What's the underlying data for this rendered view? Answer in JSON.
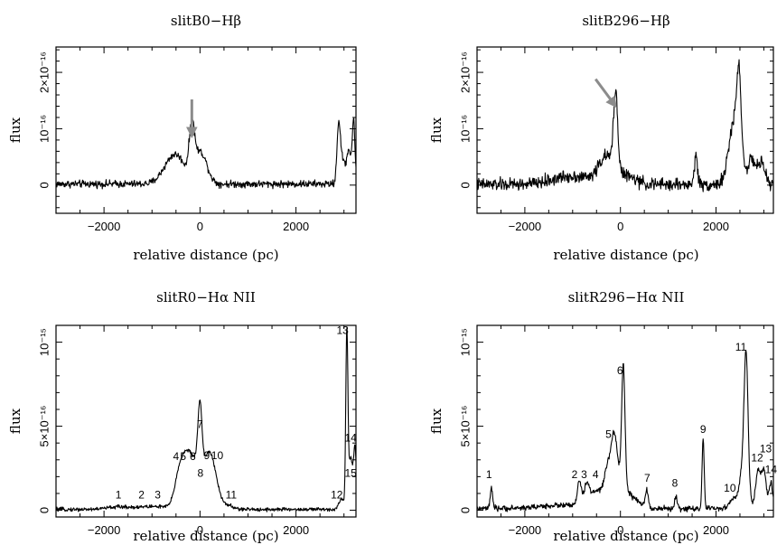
{
  "colors": {
    "trace": "#000000",
    "arrow": "#8c8c8c",
    "background": "#ffffff"
  },
  "chart_data": [
    {
      "type": "line",
      "title": "slitB0−Hβ",
      "xlabel": "relative distance (pc)",
      "ylabel": "flux",
      "xlim": [
        -3000,
        3250
      ],
      "ylim": [
        -5e-17,
        2.45e-16
      ],
      "xticks": [
        -2000,
        0,
        2000
      ],
      "xtick_labels": [
        "−2000",
        "0",
        "2000"
      ],
      "yticks": [
        0,
        1e-16,
        2e-16
      ],
      "ytick_labels": [
        "0",
        "10⁻¹⁶",
        "2×10⁻¹⁶"
      ],
      "grid": false,
      "noise_amplitude": 4e-18,
      "baseline": 2e-18,
      "peaks": [
        {
          "x": -620,
          "height": 3.5e-17,
          "width": 180
        },
        {
          "x": -420,
          "height": 2.8e-17,
          "width": 150
        },
        {
          "x": -170,
          "height": 8.2e-17,
          "width": 55
        },
        {
          "x": -40,
          "height": 3.8e-17,
          "width": 120
        },
        {
          "x": 80,
          "height": 2.6e-17,
          "width": 120
        },
        {
          "x": 2890,
          "height": 1.05e-16,
          "width": 35
        },
        {
          "x": 2980,
          "height": 4e-17,
          "width": 50
        },
        {
          "x": 3100,
          "height": 6e-17,
          "width": 40
        },
        {
          "x": 3200,
          "height": 1.1e-16,
          "width": 30
        }
      ],
      "arrows": [
        {
          "x": -170,
          "y": 8.7e-17,
          "dx": 0,
          "dy": 6.5e-17
        }
      ],
      "peak_labels": []
    },
    {
      "type": "line",
      "title": "slitB296−Hβ",
      "xlabel": "relative distance (pc)",
      "ylabel": "flux",
      "xlim": [
        -3000,
        3200
      ],
      "ylim": [
        -5e-17,
        2.45e-16
      ],
      "xticks": [
        -2000,
        0,
        2000
      ],
      "xtick_labels": [
        "−2000",
        "0",
        "2000"
      ],
      "yticks": [
        0,
        1e-16,
        2e-16
      ],
      "ytick_labels": [
        "0",
        "10⁻¹⁶",
        "2×10⁻¹⁶"
      ],
      "grid": false,
      "noise_amplitude": 7e-18,
      "baseline": 1e-18,
      "peaks": [
        {
          "x": -1000,
          "height": 1.5e-17,
          "width": 400
        },
        {
          "x": -300,
          "height": 4.5e-17,
          "width": 160
        },
        {
          "x": -100,
          "height": 1.35e-16,
          "width": 45
        },
        {
          "x": 100,
          "height": 1.5e-17,
          "width": 200
        },
        {
          "x": 1580,
          "height": 5.5e-17,
          "width": 30
        },
        {
          "x": 2400,
          "height": 1.2e-16,
          "width": 120
        },
        {
          "x": 2480,
          "height": 1.2e-16,
          "width": 40
        },
        {
          "x": 2750,
          "height": 4e-17,
          "width": 80
        },
        {
          "x": 2950,
          "height": 3.5e-17,
          "width": 80
        }
      ],
      "arrows": [
        {
          "x": -100,
          "y": 1.4e-16,
          "dx": -420,
          "dy": 4.8e-17
        }
      ],
      "peak_labels": []
    },
    {
      "type": "line",
      "title": "slitR0−Hα NII",
      "xlabel": "relative distance (pc)",
      "ylabel": "flux",
      "xlim": [
        -3000,
        3250
      ],
      "ylim": [
        -4e-17,
        1.1e-15
      ],
      "xticks": [
        -2000,
        0,
        2000
      ],
      "xtick_labels": [
        "−2000",
        "0",
        "2000"
      ],
      "yticks": [
        0,
        5e-16,
        1e-15
      ],
      "ytick_labels": [
        "0",
        "5×10⁻¹⁶",
        "10⁻¹⁵"
      ],
      "grid": false,
      "noise_amplitude": 7e-18,
      "baseline": 5e-18,
      "peaks": [
        {
          "x": -1700,
          "height": 1.5e-17,
          "width": 250
        },
        {
          "x": -1200,
          "height": 1e-17,
          "width": 200
        },
        {
          "x": -850,
          "height": 1.5e-17,
          "width": 200
        },
        {
          "x": -400,
          "height": 2.6e-16,
          "width": 110
        },
        {
          "x": -230,
          "height": 2.3e-16,
          "width": 90
        },
        {
          "x": -60,
          "height": 2.3e-16,
          "width": 90
        },
        {
          "x": 0,
          "height": 3.6e-16,
          "width": 40
        },
        {
          "x": 150,
          "height": 2.4e-16,
          "width": 110
        },
        {
          "x": 280,
          "height": 1.6e-16,
          "width": 110
        },
        {
          "x": 550,
          "height": 2.5e-17,
          "width": 120
        },
        {
          "x": 2950,
          "height": 6e-17,
          "width": 60
        },
        {
          "x": 3060,
          "height": 1.05e-15,
          "width": 22
        },
        {
          "x": 3140,
          "height": 3e-16,
          "width": 40
        },
        {
          "x": 3230,
          "height": 3.5e-16,
          "width": 30
        }
      ],
      "arrows": [],
      "peak_labels": [
        {
          "text": "1",
          "x": -1700,
          "y": 7e-17
        },
        {
          "text": "2",
          "x": -1220,
          "y": 7e-17
        },
        {
          "text": "3",
          "x": -880,
          "y": 7e-17
        },
        {
          "text": "4",
          "x": -500,
          "y": 3e-16
        },
        {
          "text": "5",
          "x": -350,
          "y": 3e-16
        },
        {
          "text": "6",
          "x": -150,
          "y": 3e-16
        },
        {
          "text": "7",
          "x": 0,
          "y": 4.9e-16
        },
        {
          "text": "8",
          "x": 10,
          "y": 2e-16
        },
        {
          "text": "9",
          "x": 140,
          "y": 3.05e-16
        },
        {
          "text": "10",
          "x": 360,
          "y": 3.05e-16
        },
        {
          "text": "11",
          "x": 650,
          "y": 7e-17
        },
        {
          "text": "12",
          "x": 2850,
          "y": 7e-17
        },
        {
          "text": "13",
          "x": 2970,
          "y": 1.05e-15
        },
        {
          "text": "14",
          "x": 3140,
          "y": 4.1e-16
        },
        {
          "text": "15",
          "x": 3140,
          "y": 2e-16
        }
      ]
    },
    {
      "type": "line",
      "title": "slitR296−Hα NII",
      "xlabel": "relative distance (pc)",
      "ylabel": "flux",
      "xlim": [
        -3000,
        3200
      ],
      "ylim": [
        -4e-17,
        1.1e-15
      ],
      "xticks": [
        -2000,
        0,
        2000
      ],
      "xtick_labels": [
        "−2000",
        "0",
        "2000"
      ],
      "yticks": [
        0,
        5e-16,
        1e-15
      ],
      "ytick_labels": [
        "0",
        "5×10⁻¹⁶",
        "10⁻¹⁵"
      ],
      "grid": false,
      "noise_amplitude": 1e-17,
      "baseline": 1e-17,
      "peaks": [
        {
          "x": -2700,
          "height": 1.2e-16,
          "width": 25
        },
        {
          "x": -1200,
          "height": 2e-17,
          "width": 500
        },
        {
          "x": -860,
          "height": 1.5e-16,
          "width": 40
        },
        {
          "x": -700,
          "height": 1.3e-16,
          "width": 60
        },
        {
          "x": -500,
          "height": 8e-17,
          "width": 100
        },
        {
          "x": -280,
          "height": 1.5e-16,
          "width": 70
        },
        {
          "x": -130,
          "height": 3.3e-16,
          "width": 70
        },
        {
          "x": 60,
          "height": 7.4e-16,
          "width": 35
        },
        {
          "x": 0,
          "height": 1.2e-16,
          "width": 250
        },
        {
          "x": 550,
          "height": 1e-16,
          "width": 30
        },
        {
          "x": 1160,
          "height": 7e-17,
          "width": 25
        },
        {
          "x": 1730,
          "height": 4.1e-16,
          "width": 22
        },
        {
          "x": 2350,
          "height": 5e-17,
          "width": 80
        },
        {
          "x": 2580,
          "height": 2.7e-16,
          "width": 80
        },
        {
          "x": 2630,
          "height": 7.2e-16,
          "width": 40
        },
        {
          "x": 2880,
          "height": 2.2e-16,
          "width": 50
        },
        {
          "x": 3000,
          "height": 2.2e-16,
          "width": 50
        },
        {
          "x": 3150,
          "height": 1.5e-16,
          "width": 40
        }
      ],
      "arrows": [],
      "peak_labels": [
        {
          "text": "1",
          "x": -2750,
          "y": 1.9e-16
        },
        {
          "text": "2",
          "x": -960,
          "y": 1.9e-16
        },
        {
          "text": "3",
          "x": -760,
          "y": 1.9e-16
        },
        {
          "text": "4",
          "x": -520,
          "y": 1.9e-16
        },
        {
          "text": "5",
          "x": -250,
          "y": 4.3e-16
        },
        {
          "text": "6",
          "x": -10,
          "y": 8.1e-16
        },
        {
          "text": "7",
          "x": 560,
          "y": 1.7e-16
        },
        {
          "text": "8",
          "x": 1140,
          "y": 1.4e-16
        },
        {
          "text": "9",
          "x": 1730,
          "y": 4.6e-16
        },
        {
          "text": "10",
          "x": 2290,
          "y": 1.1e-16
        },
        {
          "text": "11",
          "x": 2520,
          "y": 9.5e-16
        },
        {
          "text": "12",
          "x": 2860,
          "y": 2.9e-16
        },
        {
          "text": "13",
          "x": 3040,
          "y": 3.45e-16
        },
        {
          "text": "14",
          "x": 3150,
          "y": 2.2e-16
        }
      ]
    }
  ]
}
